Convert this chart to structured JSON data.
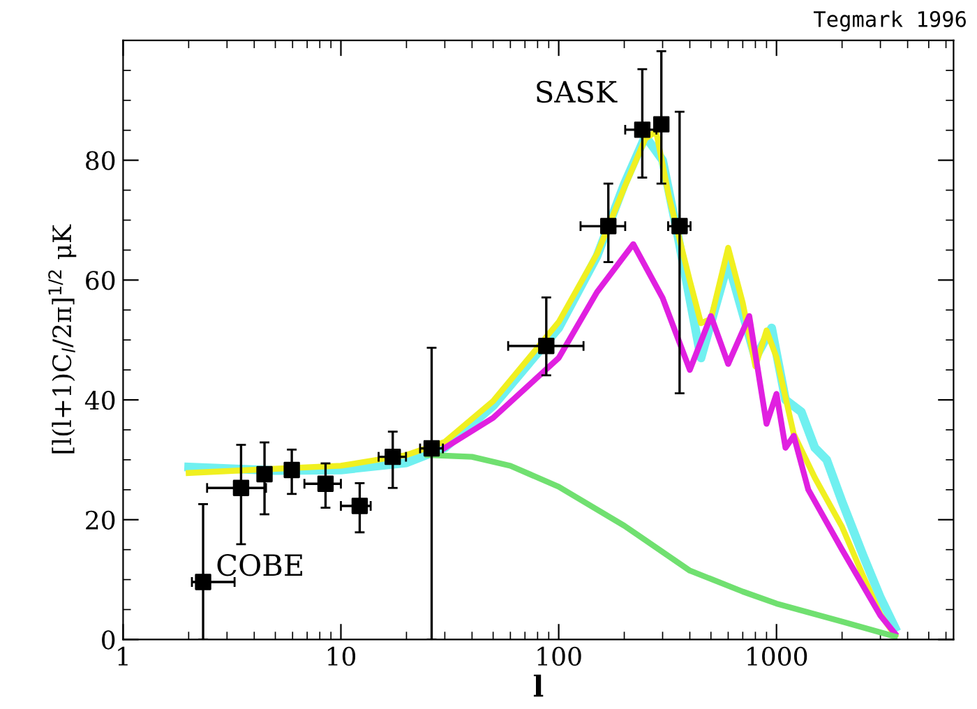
{
  "chart_data": {
    "type": "line",
    "xlabel": "l",
    "ylabel": "[l(l+1)C$_{l}$/2π]$^{1/2}$ μK",
    "log": "x",
    "xlim": [
      1,
      6500
    ],
    "xticks": [
      1,
      10,
      100,
      1000
    ],
    "ylim": [
      0,
      100
    ],
    "yticks": [
      0,
      20,
      40,
      60,
      80
    ],
    "grid": false,
    "legend": false,
    "annotations": [
      "Tegmark 1996",
      "SASK",
      "COBE"
    ],
    "series": [
      {
        "color": "#70f0f0",
        "x": [
          2,
          5,
          10,
          20,
          30,
          50,
          100,
          150,
          200,
          250,
          300,
          350,
          450,
          600,
          800,
          950,
          1100,
          1300,
          1500,
          1700,
          2000,
          2500,
          3000,
          3500
        ],
        "values": [
          28.8,
          28.2,
          28.3,
          29.5,
          32,
          39,
          52,
          64,
          76,
          84,
          80,
          68,
          47,
          63,
          47,
          52,
          40,
          38,
          32,
          30,
          23,
          14,
          7,
          2
        ]
      },
      {
        "color": "#f0f020",
        "x": [
          2,
          5,
          10,
          20,
          30,
          50,
          100,
          150,
          200,
          250,
          280,
          320,
          400,
          450,
          500,
          600,
          700,
          800,
          900,
          1000,
          1200,
          1500,
          2000,
          2500,
          3000,
          3500
        ],
        "values": [
          27.8,
          28.5,
          29,
          30.8,
          33,
          39.8,
          53,
          64.4,
          75.4,
          83.6,
          84.8,
          74.1,
          59.9,
          52.8,
          53.5,
          65.4,
          56.2,
          45.6,
          51.6,
          47.1,
          34.3,
          27,
          18.8,
          10.6,
          4.2,
          0.7
        ]
      },
      {
        "color": "#e020e0",
        "x": [
          30,
          50,
          100,
          150,
          220,
          300,
          400,
          500,
          600,
          750,
          900,
          1000,
          1100,
          1200,
          1400,
          2000,
          3000,
          3500
        ],
        "values": [
          32,
          37,
          47,
          58,
          66,
          57,
          45,
          54,
          46,
          54,
          36,
          41,
          32,
          34,
          25,
          15,
          4,
          1
        ]
      },
      {
        "color": "#70e070",
        "x": [
          25,
          40,
          60,
          100,
          200,
          400,
          700,
          1000,
          2000,
          3500
        ],
        "values": [
          30.8,
          30.5,
          29,
          25.5,
          19,
          11.5,
          8,
          6,
          3,
          0.5
        ]
      },
      {
        "color": "#000000",
        "type": "scatter",
        "marker": "square",
        "x": [
          2.33,
          3.48,
          4.46,
          5.95,
          8.5,
          12.2,
          17.3,
          26.1,
          87.7,
          169,
          242,
          296,
          359
        ],
        "values": [
          9.6,
          25.3,
          27.6,
          28.3,
          26,
          22.3,
          30.5,
          31.9,
          49,
          69,
          85.1,
          86,
          69
        ],
        "errors": [
          [
            0,
            22.6
          ],
          [
            15.9,
            32.5
          ],
          [
            20.9,
            32.9
          ],
          [
            24.3,
            31.7
          ],
          [
            22,
            29.4
          ],
          [
            17.9,
            26.1
          ],
          [
            25.3,
            34.7
          ],
          [
            0,
            48.7
          ],
          [
            44.1,
            57.1
          ],
          [
            63,
            76.1
          ],
          [
            77.1,
            95.2
          ],
          [
            76.1,
            98.2
          ],
          [
            41.1,
            88.1
          ]
        ],
        "xerrors": [
          [
            2.07,
            3.25
          ],
          [
            2.43,
            4.53
          ],
          null,
          null,
          [
            6.8,
            10
          ],
          [
            10,
            13.7
          ],
          [
            14.9,
            19.9
          ],
          [
            23.1,
            29.4
          ],
          [
            58.6,
            130
          ],
          [
            126,
            202
          ],
          [
            202,
            281
          ],
          null,
          [
            318,
            403
          ]
        ]
      }
    ]
  }
}
